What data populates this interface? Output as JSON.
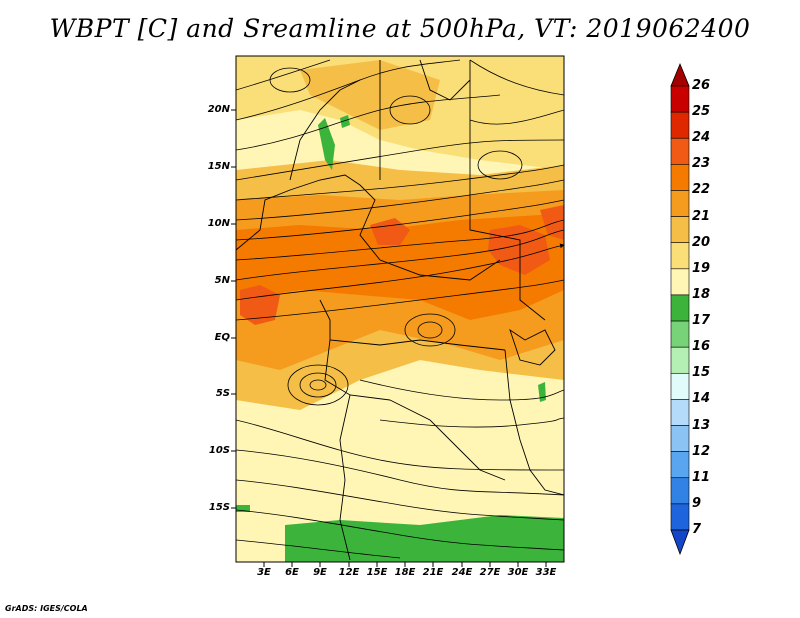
{
  "title": "WBPT [C] and Sreamline at 500hPa, VT: 2019062400",
  "footer": "GrADS: IGES/COLA",
  "map": {
    "lat_labels": [
      "20N",
      "15N",
      "10N",
      "5N",
      "EQ",
      "5S",
      "10S",
      "15S"
    ],
    "lon_labels": [
      "3E",
      "6E",
      "9E",
      "12E",
      "15E",
      "18E",
      "21E",
      "24E",
      "27E",
      "30E",
      "33E"
    ]
  },
  "colorbar": {
    "labels": [
      "26",
      "25",
      "24",
      "23",
      "22",
      "21",
      "20",
      "19",
      "18",
      "17",
      "16",
      "15",
      "14",
      "13",
      "12",
      "11",
      "9",
      "7"
    ],
    "colors": [
      "#a50000",
      "#c80000",
      "#e02800",
      "#f05a14",
      "#f57a00",
      "#f59b1e",
      "#f5be46",
      "#fade78",
      "#fff5b4",
      "#3cb43c",
      "#78d278",
      "#b4f0b4",
      "#e1fafa",
      "#b4dcfa",
      "#8cc3f5",
      "#5aa5f0",
      "#3282e6",
      "#1e64dc",
      "#1446c8"
    ]
  }
}
